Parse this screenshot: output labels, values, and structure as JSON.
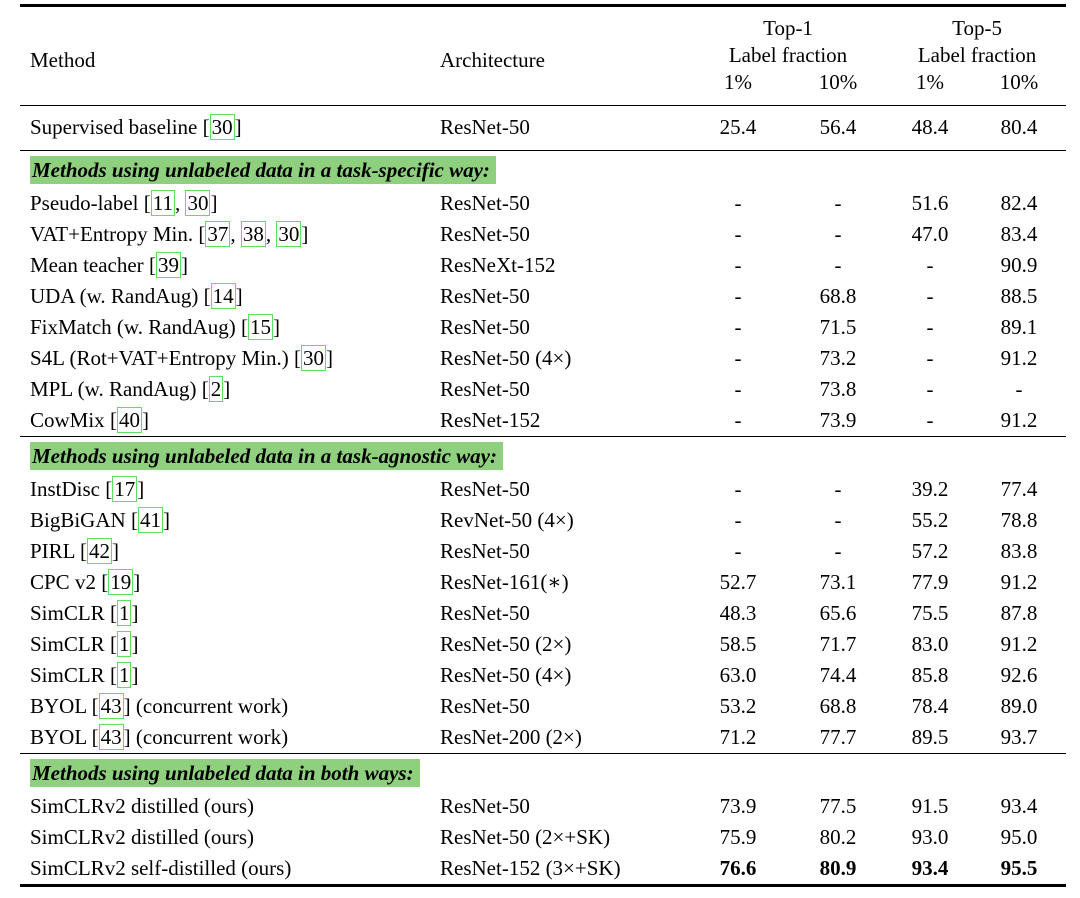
{
  "colors": {
    "section_highlight": "#8fd07f",
    "citation_border": "#5fdf5f"
  },
  "punctuation": {
    "cite_open": "[",
    "cite_close": "]",
    "cite_sep": ", "
  },
  "header": {
    "method": "Method",
    "architecture": "Architecture",
    "top1": "Top-1",
    "top5": "Top-5",
    "label_fraction": "Label fraction",
    "frac_1": "1%",
    "frac_10": "10%"
  },
  "chart_data": {
    "type": "table",
    "columns": [
      "Method",
      "Architecture",
      "Top-1 Label fraction 1%",
      "Top-1 Label fraction 10%",
      "Top-5 Label fraction 1%",
      "Top-5 Label fraction 10%"
    ],
    "note": "rows listed under sections below"
  },
  "sections": [
    {
      "title": "",
      "rows": [
        {
          "method": "Supervised baseline",
          "refs": [
            "30"
          ],
          "note": "",
          "arch": "ResNet-50",
          "values": [
            "25.4",
            "56.4",
            "48.4",
            "80.4"
          ],
          "bold": false
        }
      ]
    },
    {
      "title": "Methods using unlabeled data in a task-specific way:",
      "rows": [
        {
          "method": "Pseudo-label",
          "refs": [
            "11",
            "30"
          ],
          "note": "",
          "arch": "ResNet-50",
          "values": [
            "-",
            "-",
            "51.6",
            "82.4"
          ],
          "bold": false
        },
        {
          "method": "VAT+Entropy Min.",
          "refs": [
            "37",
            "38",
            "30"
          ],
          "note": "",
          "arch": "ResNet-50",
          "values": [
            "-",
            "-",
            "47.0",
            "83.4"
          ],
          "bold": false
        },
        {
          "method": "Mean teacher",
          "refs": [
            "39"
          ],
          "note": "",
          "arch": "ResNeXt-152",
          "values": [
            "-",
            "-",
            "-",
            "90.9"
          ],
          "bold": false
        },
        {
          "method": "UDA (w. RandAug)",
          "refs": [
            "14"
          ],
          "note": "",
          "arch": "ResNet-50",
          "values": [
            "-",
            "68.8",
            "-",
            "88.5"
          ],
          "bold": false
        },
        {
          "method": "FixMatch (w. RandAug)",
          "refs": [
            "15"
          ],
          "note": "",
          "arch": "ResNet-50",
          "values": [
            "-",
            "71.5",
            "-",
            "89.1"
          ],
          "bold": false
        },
        {
          "method": "S4L (Rot+VAT+Entropy Min.)",
          "refs": [
            "30"
          ],
          "note": "",
          "arch": "ResNet-50 (4×)",
          "values": [
            "-",
            "73.2",
            "-",
            "91.2"
          ],
          "bold": false
        },
        {
          "method": "MPL (w. RandAug)",
          "refs": [
            "2"
          ],
          "note": "",
          "arch": "ResNet-50",
          "values": [
            "-",
            "73.8",
            "-",
            "-"
          ],
          "bold": false
        },
        {
          "method": "CowMix",
          "refs": [
            "40"
          ],
          "note": "",
          "arch": "ResNet-152",
          "values": [
            "-",
            "73.9",
            "-",
            "91.2"
          ],
          "bold": false
        }
      ]
    },
    {
      "title": "Methods using unlabeled data in a task-agnostic way:",
      "rows": [
        {
          "method": "InstDisc",
          "refs": [
            "17"
          ],
          "note": "",
          "arch": "ResNet-50",
          "values": [
            "-",
            "-",
            "39.2",
            "77.4"
          ],
          "bold": false
        },
        {
          "method": "BigBiGAN",
          "refs": [
            "41"
          ],
          "note": "",
          "arch": "RevNet-50 (4×)",
          "values": [
            "-",
            "-",
            "55.2",
            "78.8"
          ],
          "bold": false
        },
        {
          "method": "PIRL",
          "refs": [
            "42"
          ],
          "note": "",
          "arch": "ResNet-50",
          "values": [
            "-",
            "-",
            "57.2",
            "83.8"
          ],
          "bold": false
        },
        {
          "method": "CPC v2",
          "refs": [
            "19"
          ],
          "note": "",
          "arch": "ResNet-161(∗)",
          "values": [
            "52.7",
            "73.1",
            "77.9",
            "91.2"
          ],
          "bold": false
        },
        {
          "method": "SimCLR",
          "refs": [
            "1"
          ],
          "note": "",
          "arch": "ResNet-50",
          "values": [
            "48.3",
            "65.6",
            "75.5",
            "87.8"
          ],
          "bold": false
        },
        {
          "method": "SimCLR",
          "refs": [
            "1"
          ],
          "note": "",
          "arch": "ResNet-50 (2×)",
          "values": [
            "58.5",
            "71.7",
            "83.0",
            "91.2"
          ],
          "bold": false
        },
        {
          "method": "SimCLR",
          "refs": [
            "1"
          ],
          "note": "",
          "arch": "ResNet-50 (4×)",
          "values": [
            "63.0",
            "74.4",
            "85.8",
            "92.6"
          ],
          "bold": false
        },
        {
          "method": "BYOL",
          "refs": [
            "43"
          ],
          "note": " (concurrent work)",
          "arch": "ResNet-50",
          "values": [
            "53.2",
            "68.8",
            "78.4",
            "89.0"
          ],
          "bold": false
        },
        {
          "method": "BYOL",
          "refs": [
            "43"
          ],
          "note": " (concurrent work)",
          "arch": "ResNet-200 (2×)",
          "values": [
            "71.2",
            "77.7",
            "89.5",
            "93.7"
          ],
          "bold": false
        }
      ]
    },
    {
      "title": "Methods using unlabeled data in both ways:",
      "rows": [
        {
          "method": "SimCLRv2 distilled (ours)",
          "refs": [],
          "note": "",
          "arch": "ResNet-50",
          "values": [
            "73.9",
            "77.5",
            "91.5",
            "93.4"
          ],
          "bold": false
        },
        {
          "method": "SimCLRv2 distilled (ours)",
          "refs": [],
          "note": "",
          "arch": "ResNet-50 (2×+SK)",
          "values": [
            "75.9",
            "80.2",
            "93.0",
            "95.0"
          ],
          "bold": false
        },
        {
          "method": "SimCLRv2 self-distilled (ours)",
          "refs": [],
          "note": "",
          "arch": "ResNet-152 (3×+SK)",
          "values": [
            "76.6",
            "80.9",
            "93.4",
            "95.5"
          ],
          "bold": true
        }
      ]
    }
  ]
}
